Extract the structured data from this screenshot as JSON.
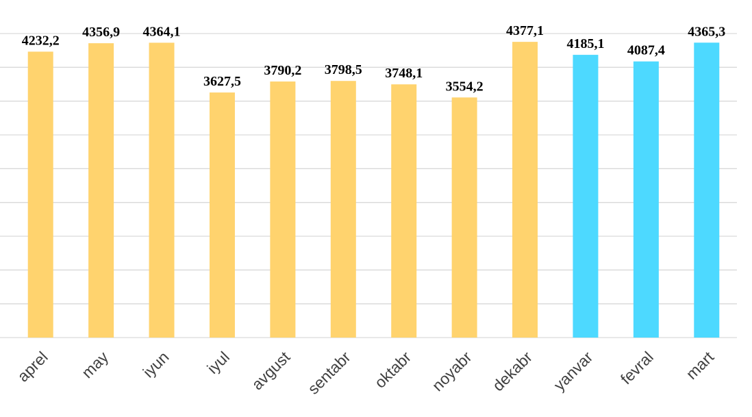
{
  "chart_data": {
    "type": "bar",
    "categories": [
      "aprel",
      "may",
      "iyun",
      "iyul",
      "avgust",
      "sentabr",
      "oktabr",
      "noyabr",
      "dekabr",
      "yanvar",
      "fevral",
      "mart"
    ],
    "values": [
      4232.2,
      4356.9,
      4364.1,
      3627.5,
      3790.2,
      3798.5,
      3748.1,
      3554.2,
      4377.1,
      4185.1,
      4087.4,
      4365.3
    ],
    "value_labels": [
      "4232,2",
      "4356,9",
      "4364,1",
      "3627,5",
      "3790,2",
      "3798,5",
      "3748,1",
      "3554,2",
      "4377,1",
      "4185,1",
      "4087,4",
      "4365,3"
    ],
    "colors": [
      "#FFD36E",
      "#FFD36E",
      "#FFD36E",
      "#FFD36E",
      "#FFD36E",
      "#FFD36E",
      "#FFD36E",
      "#FFD36E",
      "#FFD36E",
      "#4DD9FF",
      "#4DD9FF",
      "#4DD9FF"
    ],
    "ylim": [
      0,
      4500
    ],
    "yticks": [
      0,
      500,
      1000,
      1500,
      2000,
      2500,
      3000,
      3500,
      4000,
      4500
    ],
    "grid": true
  }
}
